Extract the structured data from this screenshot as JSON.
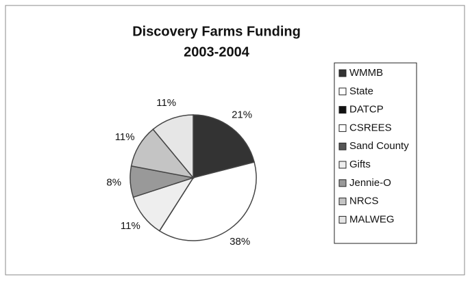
{
  "chart_data": {
    "type": "pie",
    "title": "Discovery Farms Funding",
    "subtitle": "2003-2004",
    "categories": [
      "WMMB",
      "State",
      "DATCP",
      "CSREES",
      "Sand County",
      "Gifts",
      "Jennie-O",
      "NRCS",
      "MALWEG"
    ],
    "values": [
      21,
      38,
      0,
      0,
      0,
      11,
      8,
      11,
      11
    ],
    "value_labels": [
      "21%",
      "38%",
      null,
      null,
      null,
      "11%",
      "8%",
      "11%",
      "11%"
    ],
    "colors": [
      "#333333",
      "#ffffff",
      "#111111",
      "#ffffff",
      "#555555",
      "#eeeeee",
      "#999999",
      "#c4c4c4",
      "#e6e6e6"
    ],
    "legend": "right"
  }
}
